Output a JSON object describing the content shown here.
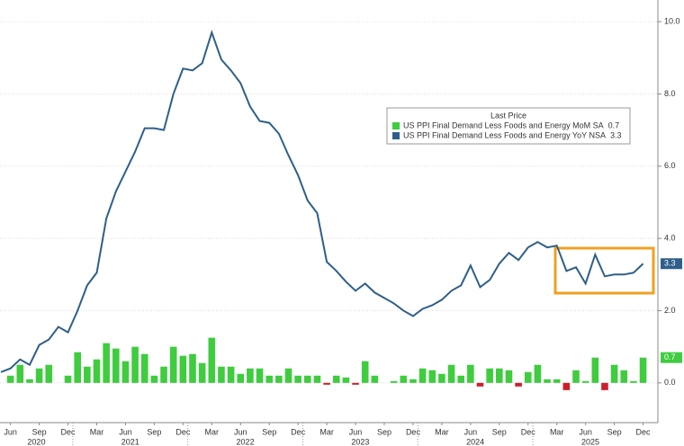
{
  "chart_data": {
    "type": "combo",
    "categories": [
      null,
      "Jun",
      null,
      null,
      "Sep",
      null,
      null,
      "Dec",
      null,
      null,
      "Mar",
      null,
      null,
      "Jun",
      null,
      null,
      "Sep",
      null,
      null,
      "Dec",
      null,
      null,
      "Mar",
      null,
      null,
      "Jun",
      null,
      null,
      "Sep",
      null,
      null,
      "Dec",
      null,
      null,
      "Mar",
      null,
      null,
      "Jun",
      null,
      null,
      "Sep",
      null,
      null,
      "Dec",
      null,
      null,
      "Mar",
      null,
      null,
      "Jun",
      null,
      null,
      "Sep",
      null,
      null,
      "Dec",
      null,
      null,
      "Mar",
      null,
      null,
      "Jun",
      null,
      null,
      "Sep",
      null,
      null,
      "Dec"
    ],
    "years": [
      "2020",
      "2021",
      "2022",
      "2023",
      "2024",
      "2025"
    ],
    "series": [
      {
        "name": "US PPI Final Demand Less Foods and Energy MoM SA",
        "type": "bar",
        "color": "#3fcc3f",
        "negative_color": "#cc1f2a",
        "values": [
          null,
          0.2,
          0.5,
          0.1,
          0.4,
          0.5,
          0.0,
          0.2,
          0.85,
          0.45,
          0.65,
          1.1,
          0.95,
          0.6,
          1.0,
          0.8,
          0.2,
          0.45,
          1.0,
          0.75,
          0.8,
          0.55,
          1.25,
          0.45,
          0.45,
          0.25,
          0.4,
          0.4,
          0.2,
          0.2,
          0.4,
          0.2,
          0.2,
          0.2,
          -0.05,
          0.2,
          0.15,
          -0.05,
          0.6,
          0.2,
          0.0,
          0.05,
          0.2,
          0.1,
          0.4,
          0.35,
          0.25,
          0.5,
          0.2,
          0.5,
          -0.1,
          0.4,
          0.4,
          0.35,
          -0.1,
          0.3,
          0.5,
          0.1,
          0.1,
          -0.2,
          0.35,
          0.05,
          0.7,
          -0.2,
          0.5,
          0.35,
          0.05,
          0.7
        ]
      },
      {
        "name": "US PPI Final Demand Less Foods and Energy YoY NSA",
        "type": "line",
        "color": "#2e5f8a",
        "values": [
          0.3,
          0.4,
          0.65,
          0.5,
          1.05,
          1.2,
          1.55,
          1.4,
          2.0,
          2.7,
          3.05,
          4.55,
          5.3,
          5.85,
          6.4,
          7.05,
          7.05,
          7.0,
          8.0,
          8.7,
          8.65,
          8.85,
          9.7,
          8.95,
          8.65,
          8.3,
          7.65,
          7.25,
          7.2,
          6.9,
          6.3,
          5.75,
          5.05,
          4.7,
          3.35,
          3.1,
          2.8,
          2.55,
          2.75,
          2.5,
          2.35,
          2.2,
          2.0,
          1.85,
          2.05,
          2.15,
          2.3,
          2.55,
          2.7,
          3.25,
          2.65,
          2.85,
          3.3,
          3.6,
          3.4,
          3.75,
          3.9,
          3.75,
          3.8,
          3.1,
          3.2,
          2.75,
          3.55,
          2.95,
          3.0,
          3.0,
          3.05,
          3.3
        ]
      }
    ],
    "legend_title": "Last Price",
    "ylim": [
      -1.1,
      10.6
    ],
    "yticks": [
      {
        "value": 0,
        "label": "0.0"
      },
      {
        "value": 2,
        "label": "2.0"
      },
      {
        "value": 4,
        "label": "4.0"
      },
      {
        "value": 6,
        "label": "6.0"
      },
      {
        "value": 8,
        "label": "8.0"
      },
      {
        "value": 10,
        "label": "10.0"
      }
    ],
    "grid": true
  }
}
